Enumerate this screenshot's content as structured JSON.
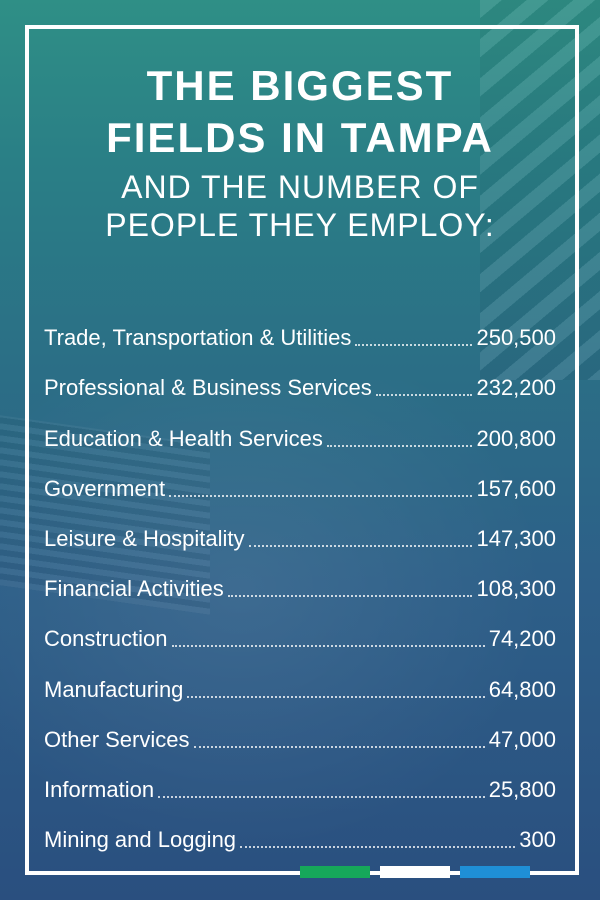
{
  "title_line1": "THE BIGGEST",
  "title_line2": "FIELDS IN TAMPA",
  "subtitle_line1": "AND THE NUMBER OF",
  "subtitle_line2": "PEOPLE THEY EMPLOY:",
  "colors": {
    "accent_green": "#16a85a",
    "accent_white": "#ffffff",
    "accent_blue": "#1f8fd6"
  },
  "chart_data": {
    "type": "table",
    "categories": [
      "Trade, Transportation & Utilities",
      "Professional & Business Services",
      "Education & Health Services",
      "Government",
      "Leisure & Hospitality",
      "Financial Activities",
      "Construction",
      "Manufacturing",
      "Other Services",
      "Information",
      "Mining and Logging"
    ],
    "values": [
      250500,
      232200,
      200800,
      157600,
      147300,
      108300,
      74200,
      64800,
      47000,
      25800,
      300
    ],
    "value_labels": [
      "250,500",
      "232,200",
      "200,800",
      "157,600",
      "147,300",
      "108,300",
      "74,200",
      "64,800",
      "47,000",
      "25,800",
      "300"
    ]
  }
}
